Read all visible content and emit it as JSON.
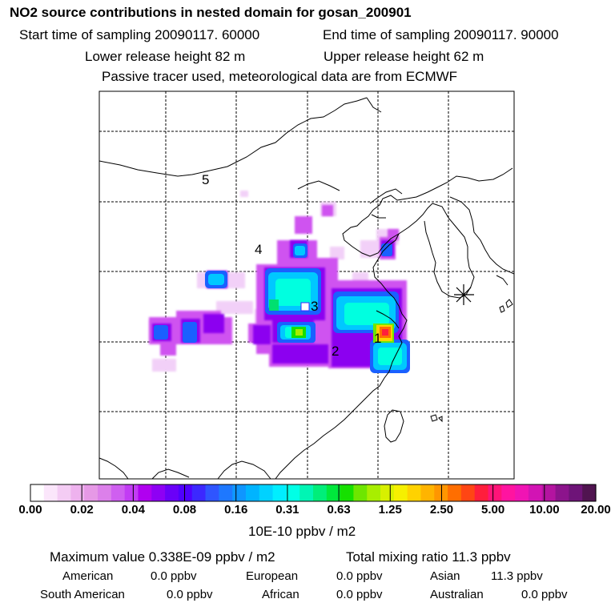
{
  "header": {
    "title": "NO2 source contributions in nested domain for gosan_200901",
    "start_time": "Start time of sampling 20090117. 60000",
    "end_time": "End time of sampling 20090117. 90000",
    "lower_release": "Lower release height   82 m",
    "upper_release": "Upper release height   62 m",
    "tracer_note": "Passive tracer used, meteorological data are from ECMWF"
  },
  "map": {
    "region_labels": [
      "5",
      "4",
      "3",
      "2",
      "1"
    ],
    "receptor_marker": "star-marker"
  },
  "colorbar": {
    "ticks": [
      "0.00",
      "0.02",
      "0.04",
      "0.08",
      "0.16",
      "0.31",
      "0.63",
      "1.25",
      "2.50",
      "5.00",
      "10.00",
      "20.00"
    ],
    "colors": [
      "#ffffff",
      "#fbe6fb",
      "#f4ccf4",
      "#eeb2ee",
      "#e699e6",
      "#dc80ea",
      "#cf5ff0",
      "#c23cf4",
      "#b000f0",
      "#8e00f4",
      "#6a00f8",
      "#5000ff",
      "#3c28ff",
      "#2f55ff",
      "#1e78ff",
      "#0f96ff",
      "#00b4ff",
      "#00d2ff",
      "#00eeff",
      "#00ffe6",
      "#00f5b4",
      "#00ee7a",
      "#00e83c",
      "#16e000",
      "#6ee600",
      "#a8ee00",
      "#d8f000",
      "#f6f000",
      "#ffd200",
      "#ffb400",
      "#ff9600",
      "#ff6e00",
      "#ff4614",
      "#ff1e3c",
      "#ff1478",
      "#ff14a0",
      "#f014b4",
      "#d214b4",
      "#b414a0",
      "#8c148c",
      "#6e1478",
      "#501450"
    ],
    "unit": "10E-10 ppbv / m2"
  },
  "summary": {
    "maximum_value": "Maximum value  0.338E-09 ppbv / m2",
    "total_mixing_ratio": "Total mixing ratio       11.3 ppbv",
    "regions": [
      {
        "name": "American",
        "value": "0.0 ppbv"
      },
      {
        "name": "European",
        "value": "0.0 ppbv"
      },
      {
        "name": "Asian",
        "value": "11.3 ppbv"
      },
      {
        "name": "South American",
        "value": "0.0 ppbv"
      },
      {
        "name": "African",
        "value": "0.0 ppbv"
      },
      {
        "name": "Australian",
        "value": "0.0 ppbv"
      }
    ]
  }
}
